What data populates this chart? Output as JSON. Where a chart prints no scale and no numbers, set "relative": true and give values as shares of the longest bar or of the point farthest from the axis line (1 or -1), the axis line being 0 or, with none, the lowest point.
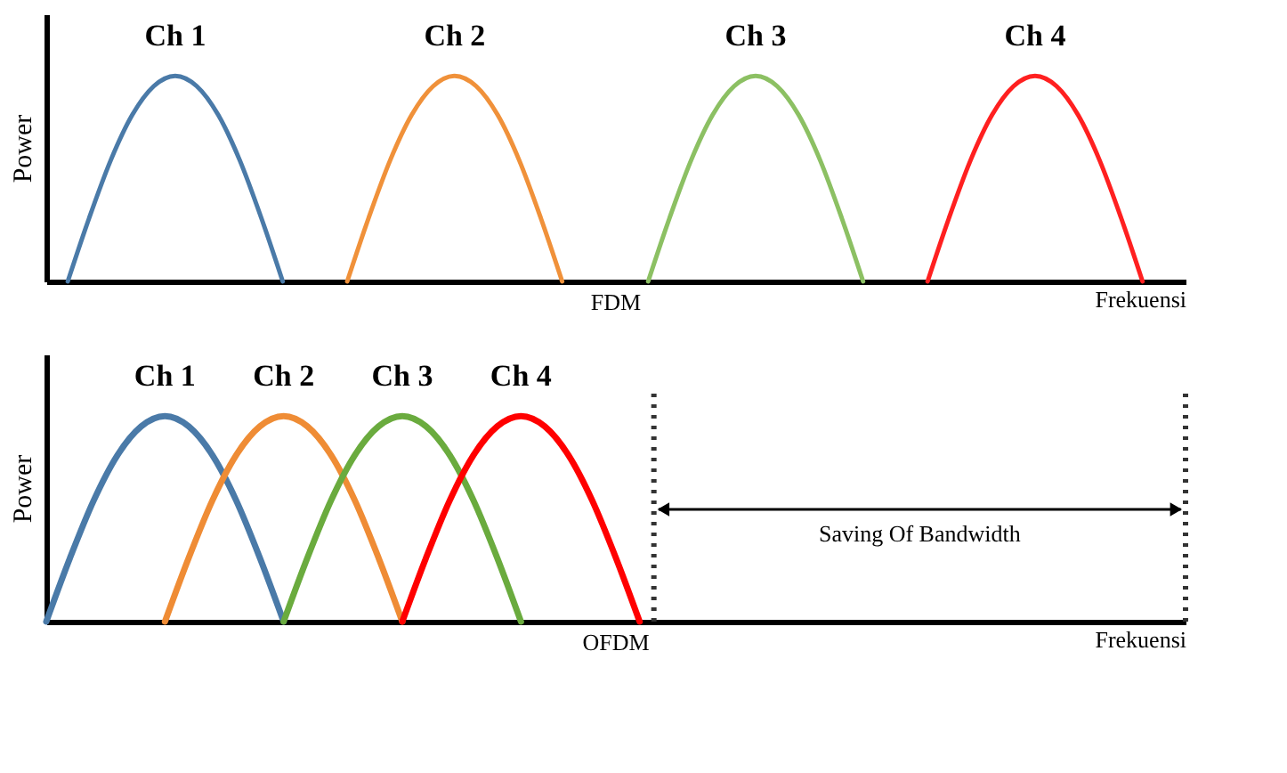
{
  "chart_data": [
    {
      "type": "line",
      "relative": true,
      "xlabel": "Frekuensi",
      "ylabel": "Power",
      "annotations": [
        "FDM"
      ],
      "categories": [
        null,
        null,
        null,
        null,
        null,
        null,
        null,
        null,
        null,
        null,
        null,
        null,
        null,
        null,
        null,
        null,
        null,
        null,
        null,
        null,
        null,
        null,
        null,
        null,
        null,
        null,
        null,
        null,
        null,
        null,
        null,
        null,
        null,
        null,
        null,
        null,
        null,
        null,
        null,
        null,
        null,
        null,
        null,
        null,
        null,
        null,
        null,
        null,
        null,
        null,
        null,
        null,
        null,
        null
      ],
      "series": [
        {
          "name": "Ch 1",
          "color": "#4a7aa8",
          "values": [
            null,
            0,
            0.31,
            0.59,
            0.81,
            0.95,
            1,
            0.95,
            0.81,
            0.59,
            0.31,
            0,
            null,
            null,
            null,
            null,
            null,
            null,
            null,
            null,
            null,
            null,
            null,
            null,
            null,
            null,
            null,
            null,
            null,
            null,
            null,
            null,
            null,
            null,
            null,
            null,
            null,
            null,
            null,
            null,
            null,
            null,
            null,
            null,
            null,
            null,
            null,
            null,
            null,
            null,
            null,
            null,
            null,
            null
          ]
        },
        {
          "name": "Ch 2",
          "color": "#f0913a",
          "values": [
            null,
            null,
            null,
            null,
            null,
            null,
            null,
            null,
            null,
            null,
            null,
            null,
            null,
            null,
            0,
            0.31,
            0.59,
            0.81,
            0.95,
            1,
            0.95,
            0.81,
            0.59,
            0.31,
            0,
            null,
            null,
            null,
            null,
            null,
            null,
            null,
            null,
            null,
            null,
            null,
            null,
            null,
            null,
            null,
            null,
            null,
            null,
            null,
            null,
            null,
            null,
            null,
            null,
            null,
            null,
            null,
            null,
            null
          ]
        },
        {
          "name": "Ch 3",
          "color": "#8cc063",
          "values": [
            null,
            null,
            null,
            null,
            null,
            null,
            null,
            null,
            null,
            null,
            null,
            null,
            null,
            null,
            null,
            null,
            null,
            null,
            null,
            null,
            null,
            null,
            null,
            null,
            null,
            null,
            null,
            null,
            0,
            0.31,
            0.59,
            0.81,
            0.95,
            1,
            0.95,
            0.81,
            0.59,
            0.31,
            0,
            null,
            null,
            null,
            null,
            null,
            null,
            null,
            null,
            null,
            null,
            null,
            null,
            null,
            null,
            null
          ]
        },
        {
          "name": "Ch 4",
          "color": "#ff2020",
          "values": [
            null,
            null,
            null,
            null,
            null,
            null,
            null,
            null,
            null,
            null,
            null,
            null,
            null,
            null,
            null,
            null,
            null,
            null,
            null,
            null,
            null,
            null,
            null,
            null,
            null,
            null,
            null,
            null,
            null,
            null,
            null,
            null,
            null,
            null,
            null,
            null,
            null,
            null,
            null,
            null,
            null,
            0,
            0.31,
            0.59,
            0.81,
            0.95,
            1,
            0.95,
            0.81,
            0.59,
            0.31,
            0,
            null,
            null
          ]
        }
      ]
    },
    {
      "type": "line",
      "relative": true,
      "xlabel": "Frekuensi",
      "ylabel": "Power",
      "annotations": [
        "OFDM",
        "Saving Of Bandwidth"
      ],
      "categories": [
        null,
        null,
        null,
        null,
        null,
        null,
        null,
        null,
        null,
        null,
        null,
        null,
        null,
        null,
        null,
        null,
        null,
        null,
        null,
        null,
        null,
        null,
        null,
        null,
        null,
        null,
        null,
        null,
        null,
        null,
        null,
        null,
        null,
        null,
        null,
        null,
        null,
        null,
        null,
        null,
        null,
        null,
        null,
        null,
        null,
        null,
        null,
        null,
        null
      ],
      "series": [
        {
          "name": "Ch 1",
          "color": "#4a7aa8",
          "values": [
            0,
            0.31,
            0.59,
            0.81,
            0.95,
            1,
            0.95,
            0.81,
            0.59,
            0.31,
            0,
            null,
            null,
            null,
            null,
            null,
            null,
            null,
            null,
            null,
            null,
            null,
            null,
            null,
            null,
            null,
            null,
            null,
            null,
            null,
            null,
            null,
            null,
            null,
            null,
            null,
            null,
            null,
            null,
            null,
            null,
            null,
            null,
            null,
            null,
            null,
            null,
            null,
            null
          ]
        },
        {
          "name": "Ch 2",
          "color": "#ef8c35",
          "values": [
            null,
            null,
            null,
            null,
            null,
            0,
            0.31,
            0.59,
            0.81,
            0.95,
            1,
            0.95,
            0.81,
            0.59,
            0.31,
            0,
            null,
            null,
            null,
            null,
            null,
            null,
            null,
            null,
            null,
            null,
            null,
            null,
            null,
            null,
            null,
            null,
            null,
            null,
            null,
            null,
            null,
            null,
            null,
            null,
            null,
            null,
            null,
            null,
            null,
            null,
            null,
            null,
            null
          ]
        },
        {
          "name": "Ch 3",
          "color": "#6aab3e",
          "values": [
            null,
            null,
            null,
            null,
            null,
            null,
            null,
            null,
            null,
            null,
            0,
            0.31,
            0.59,
            0.81,
            0.95,
            1,
            0.95,
            0.81,
            0.59,
            0.31,
            0,
            null,
            null,
            null,
            null,
            null,
            null,
            null,
            null,
            null,
            null,
            null,
            null,
            null,
            null,
            null,
            null,
            null,
            null,
            null,
            null,
            null,
            null,
            null,
            null,
            null,
            null,
            null,
            null
          ]
        },
        {
          "name": "Ch 4",
          "color": "#ff0000",
          "values": [
            null,
            null,
            null,
            null,
            null,
            null,
            null,
            null,
            null,
            null,
            null,
            null,
            null,
            null,
            null,
            0,
            0.31,
            0.59,
            0.81,
            0.95,
            1,
            0.95,
            0.81,
            0.59,
            0.31,
            0,
            null,
            null,
            null,
            null,
            null,
            null,
            null,
            null,
            null,
            null,
            null,
            null,
            null,
            null,
            null,
            null,
            null,
            null,
            null,
            null,
            null,
            null,
            null
          ]
        }
      ]
    }
  ]
}
